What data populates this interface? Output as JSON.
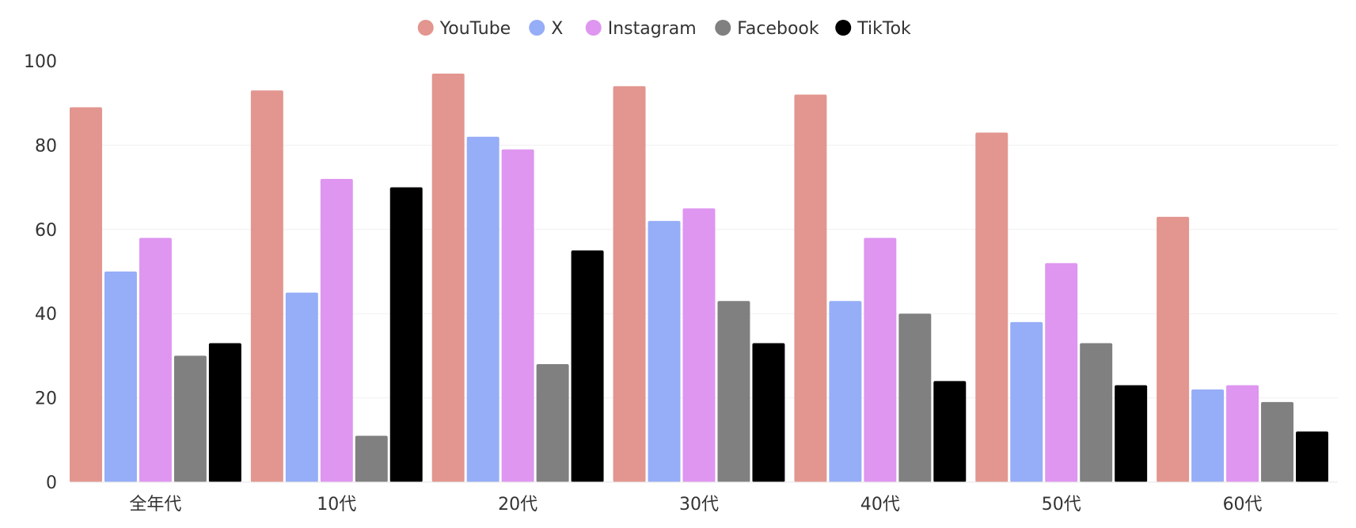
{
  "chart_data": {
    "type": "bar",
    "categories": [
      "全年代",
      "10代",
      "20代",
      "30代",
      "40代",
      "50代",
      "60代"
    ],
    "series": [
      {
        "name": "YouTube",
        "color": "#E2968F",
        "values": [
          89,
          93,
          97,
          94,
          92,
          83,
          63
        ]
      },
      {
        "name": "X",
        "color": "#96ADF7",
        "values": [
          50,
          45,
          82,
          62,
          43,
          38,
          22
        ]
      },
      {
        "name": "Instagram",
        "color": "#DE96F0",
        "values": [
          58,
          72,
          79,
          65,
          58,
          52,
          23
        ]
      },
      {
        "name": "Facebook",
        "color": "#808080",
        "values": [
          30,
          11,
          28,
          43,
          40,
          33,
          19
        ]
      },
      {
        "name": "TikTok",
        "color": "#000000",
        "values": [
          33,
          70,
          55,
          33,
          24,
          23,
          12
        ]
      }
    ],
    "ylim": [
      0,
      100
    ],
    "yticks": [
      0,
      20,
      40,
      60,
      80,
      100
    ],
    "grid": true,
    "legend_position": "top-center"
  }
}
